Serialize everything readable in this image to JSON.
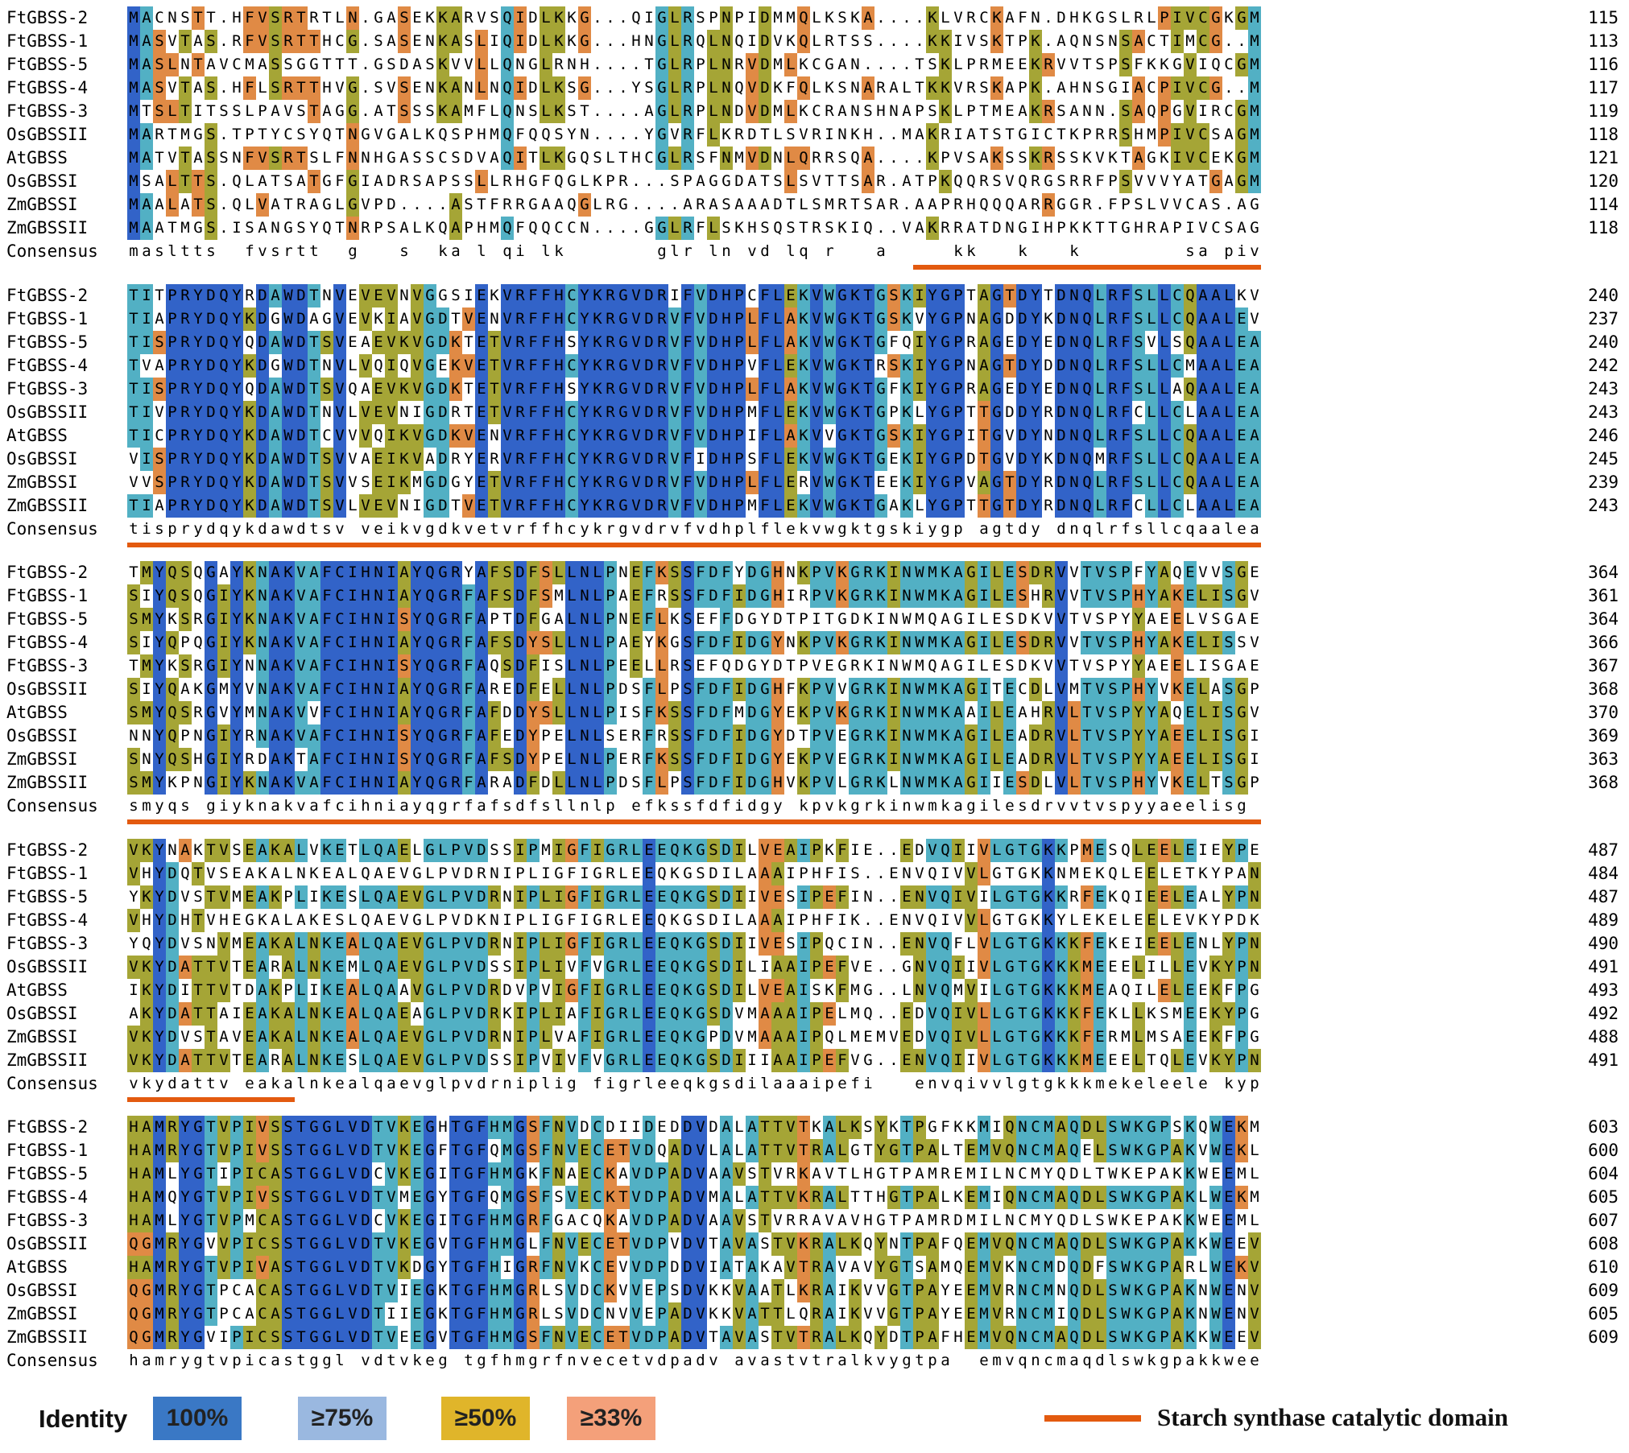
{
  "alignment": {
    "blocks": [
      {
        "rows": [
          {
            "name": "FtGBSS-2",
            "seq": "MACNSTT.HFVSRTRTLN.GASEKKARVSQIDLKKG...QIGLRSPNPIDMMQLKSKA....KLVRCKAFN.DHKGSLRLPIVCGKGMNMVFVGAEVAPWSKTGGLGDVLGGLPPALSANGHRVM",
            "end": "115"
          },
          {
            "name": "FtGBSS-1",
            "seq": "MASVTAS.RFVSRTTHCG.SASENKASLIQIDLKKG...HNGLRQLNQIDVKQLRTSS....KKIVSKTPK.AQNSNSACTIMCG..MSVVFVSTEVAPWSKTGGLGDVVGGLPPALAAMGHRVM",
            "end": "113"
          },
          {
            "name": "FtGBSS-5",
            "seq": "MASLNTAVCMASSGGTTT.GSDASKVVLLQNGLRNH....TGLRPLNRVDMLKCGAN....TSKLPRMEEKRVVTSPSFKKGVIQCGMNLVFVSAEVAPWSKTGGLGDVLAGLPPAMAANGHRVM",
            "end": "116"
          },
          {
            "name": "FtGBSS-4",
            "seq": "MASVTAS.HFLSRTTHVG.SVSENKANLNQIDLKSG...YSGLRPLNQVDKFQLKSNARALTKKVRSKAPK.AHNSGIACPIVCG..MSVVFISAEVAPWSKTGGLGDVVGGLPPALAAMGHRVM",
            "end": "117"
          },
          {
            "name": "FtGBSS-3",
            "seq": "MTSLTITSSLPAVSTAGG.ATSSSKAMFLQNSLKST....AGLRPLNDVDMLKCRANSHNAPSKLPTMEAKRSANN.SAQPGVIRCGMNLVFVGAEVAPWSKTGGLGDVLAGLPPAMAANGHRVM",
            "end": "119"
          },
          {
            "name": "OsGBSSII",
            "seq": "MARTMGS.TPTYCSYQTNGVGALKQSPHMQFQQSYN....YGVRFLKRDTLSVRINKH..MAKRIATSTGICTKPRRSHMPIVCSAGMTIIFIATECHPWCKTGGLGDVLGGLPPALAAMGHRVM",
            "end": "118"
          },
          {
            "name": "AtGBSS",
            "seq": "MATVTASSNFVSRTSLFNNHGASSCSDVAQITLKGQSLTHCGLRSFNMVDNLQRRSQA....KPVSAKSSKRSSKVKTAGKIVCEKGMSVIFIGAEVGPWSKTGGLGDVLGGLPPALAARGHRVM",
            "end": "121"
          },
          {
            "name": "OsGBSSI",
            "seq": "MSALTTS.QLATSATGFGIADRSAPSSLLRHGFQGLKPR...SPAGGDATSLSVTTSAR.ATPKQQRSVQRGSRRFPSVVVYATGAGMNVVFVGAEMAPWSKTGGLGDVLGGLPPAMAANGHRVM",
            "end": "120"
          },
          {
            "name": "ZmGBSSI",
            "seq": "MAALATS.QLVATRAGLGVPD....ASTFRRGAAQGLRG....ARASAAADTLSMRTSAR.AAPRHQQQARRGGR.FPSLVVCAS.AGMNVVFVGAEMAPWSKTGGLGDVLGGLPPAMAANGHRVM",
            "end": "114"
          },
          {
            "name": "ZmGBSSII",
            "seq": "MAATMGS.ISANGSYQTNRPSALKQAPHMQFQQCCN....GGLRFLSKHSQSTRSKIQ..VAKRRATDNGIHPKKTTGHRAPIVCSAGMTIVFVATEVHPWCKTGGLGDVLGGLPPALAAMGHRVM",
            "end": "118"
          }
        ],
        "consensus": "masltts  fvsrtt  g   s  ka l qi lk       glr ln vd lq r   a     kk   k   k        sa pivcgagmnvvfvgaevapwsktgglgdvlggl ppalaanghrvm"
      },
      {
        "rows": [
          {
            "name": "FtGBSS-2",
            "seq": "TITPRYDQYRDAWDTNVEVEVNVGGSIEKVRFFHCYKRGVDRIFVDHPCFLEKVWGKTGSKIYGPTAGTDYTDNQLRFSLLCQAALKVPMVLNMNSNKQYSGPYGEDVVFIANDWHTALLPCYLK",
            "end": "240"
          },
          {
            "name": "FtGBSS-1",
            "seq": "TIAPRYDQYKDGWDAGVEVKIAVGDTVENVRFFHCYKRGVDRVFVDHPLFLAKVWGKTGSKVYGPNAGDDYKDNQLRFSLLCQAALEVPRVLNLTS.KHHSGPYGEDVVFVANDWHTALLPCYLK",
            "end": "237"
          },
          {
            "name": "FtGBSS-5",
            "seq": "TISPRYDQYQDAWDTSVEAEVKVGDKTETVRFFHSYKRGVDRVFVDHPLFLAKVWGKTGFQIYGPRAGEDYEDNQLRFSVLSQAALEAPRILNLSN.KFFSGPYGEDVLFVANDWHSALLPCYLK",
            "end": "240"
          },
          {
            "name": "FtGBSS-4",
            "seq": "TVAPRYDQYKDGWDTNVLVQIQVGEKVETVRFFHCYKRGVDRVFVDHPVFLEKVWGKTRSKIYGPNAGTDYDDNQLRFSLLCMAALEAPRVLNLNNGKHHSGPYGEDVVFVPNDWHTALVPCYLK",
            "end": "242"
          },
          {
            "name": "FtGBSS-3",
            "seq": "TISPRYDQYQDAWDTSVQAEVKVGDKTETVRFFHSYKRGVDRVFVDHPLFLAKVWGKTGFKIYGPRAGEDYEDNQLRFSLLAQAALEAPRILNLSN.KFFSGPYGEDVVFIANDWHTALLPCYLK",
            "end": "243"
          },
          {
            "name": "OsGBSSII",
            "seq": "TIVPRYDQYKDAWDTNVLVEVNIGDRTETVRFFHCYKRGVDRVFVDHPMFLEKVWGKTGPKLYGPTTGDDYRDNQLRFCLLCLAALEAPRVLNLNNSEYFSGPYGENVVFVANDWHTGVLPCYLK",
            "end": "243"
          },
          {
            "name": "AtGBSS",
            "seq": "TICPRYDQYKDAWDTCVVVQIKVGDKVENVRFFHCYKRGVDRVFVDHPIFLAKVVGKTGSKIYGPITGVDYNDNQLRFSLLCQAALEAPQVLNLNSSKYFSGPYGEDVVFVANDWHTALLPCYLK",
            "end": "246"
          },
          {
            "name": "OsGBSSI",
            "seq": "VISPRYDQYKDAWDTSVVAEIKVADRYERVRFFHCYKRGVDRVFIDHPSFLEKVWGKTGEKIYGPDTGVDYKDNQMRFSLLCQAALEAPRILNLNNNPYFKGTYGEDVVFVCNDWHTGPLASYLK",
            "end": "245"
          },
          {
            "name": "ZmGBSSI",
            "seq": "VVSPRYDQYKDAWDTSVVSEIKMGDGYETVRFFHCYKRGVDRVFVDHPLFLERVWGKTEEKIYGPVAGTDYRDNQLRFSLLCQAALEAPRILSLNNNPYFSGPYGEDVVFVCNDWHTGPLSCYLK",
            "end": "239"
          },
          {
            "name": "ZmGBSSII",
            "seq": "TIAPRYDQYKDAWDTSVLVEVNIGDTVETVRFFHCYKRGVDRVFVDHPMFLEKVWGKTGAKLYGPTTGTDYRDNQLRFCLLCLAALEAPRVLNFNNSEYFSGPYGEDVVFVANDWHTAILPCYLK",
            "end": "243"
          }
        ],
        "consensus": "tisprydqykdawdtsv veikvgdkvetvrffhcykrgvdrvfvdhplflekvwgktgskiygp agtdy dnqlrfsllcqaaleaprvlnlnn kyfsgpygedvvfvandwhtallpcylk"
      },
      {
        "rows": [
          {
            "name": "FtGBSS-2",
            "seq": "TMYQSQGAYKNAKVAFCIHNIAYQGRYAFSDFSLLNLPNEFKSSFDFYDGHNKPVKGRKINWMKAGILESDRVVTVSPFYAQEVVSGEETGVELDNIIRKTGIT.GIVNGMDVQEWNPASDKHID",
            "end": "364"
          },
          {
            "name": "FtGBSS-1",
            "seq": "SIYQSQGIYKNAKVAFCIHNIAYQGRFAFSDFSMLNLPAEFRSSFDFIDGHIRPVKGRKINWMKAGILESHRVVTVSPHYAKELISGVAKGVELDHIIRSTGIT.GIINGMDVQEWNPATDKYID",
            "end": "361"
          },
          {
            "name": "FtGBSS-5",
            "seq": "SMYKSRGIYKNAKVAFCIHNISYQGRFAPTDFGALNLPNEFLKSEFFDGYDTPITGDKINWMQAGILESDKVVTVSPYYAEELVSGAERGVELEKIIRKTGVI.GILNGMDKEWDPSSDKFIN",
            "end": "364"
          },
          {
            "name": "FtGBSS-4",
            "seq": "SIYQPQGIYKNAKVAFCIHNIAYQGRFAFSDYSLLNLPAEYKGSFDFIDGYNKPVKGRKINWMKAGILESDRVVTVSPHYAKELISSVAKGVELDHIILRTGIT.GIVNGMDVQEWNPVTDKHID",
            "end": "366"
          },
          {
            "name": "FtGBSS-3",
            "seq": "TMYKSRGIYNNAKVAFCIHNISYQGRFAQSDFISLNLPEELLRSEFQDGYDTPVEGRKINWMQAGILESDKVVTVSPYYAEELISGAERGVELDKVIGSTGIT.GILNGMDKQEWNPLTDKHIT",
            "end": "367"
          },
          {
            "name": "OsGBSSII",
            "seq": "SIYQAKGMYVNAKVAFCIHNIAYQGRFAREDFELLNLPDSFLPSFDFIDGHFKPVVGRKINWMKAGITECDLVMTVSPHYVKELASGPDKGVELDGILRTKPLETGIVNGMDVYEWNPATDQYIS",
            "end": "368"
          },
          {
            "name": "AtGBSS",
            "seq": "SMYQSRGVYMNAKVVFCIHNIAYQGRFAFDDYSLLNLPISFKSSFDFMDGYEKPVKGRKINWMKAAILEAHRVLTVSPYYAQELISGVDRGVELHKYLRMKTVS.GIINGMDVQEWNPSTDKYID",
            "end": "370"
          },
          {
            "name": "OsGBSSI",
            "seq": "NNYQPNGIYRNAKVAFCIHNISYQGRFAFEDYPELNLSERFRSSFDFIDGYDTPVEGRKINWMKAGILEADRVLTVSPYYAEELISGIARGCELDNIMRLTGIT.GIVNGMDVSEWDPSKDKYIT",
            "end": "369"
          },
          {
            "name": "ZmGBSSI",
            "seq": "SNYQSHGIYRDAKTAFCIHNISYQGRFAFSDYPELNLPERFKSSFDFIDGYEKPVEGRKINWMKAGILEADRVLTVSPYYAEELISGIARGCELDNIMRLTGIT.GIVNGMDVSEWDPSRDKYIA",
            "end": "363"
          },
          {
            "name": "ZmGBSSII",
            "seq": "SMYKPNGIYKNAKVAFCIHNIAYQGRFARADFDLLNLPDSFLPSFDFIDGHVKPVLGRKLNWMKAGIIESDLVLTVSPHYVKELTSGPDKGVELDGVLRTKPLEIGIVNGMDVYEWDPSTDKYIS",
            "end": "368"
          }
        ],
        "consensus": "smyqs giyknakvafcihniayqgrfafsdfsllnlp efkssfdfidgy kpvkgrkinwmkagilesdrvvtvspyyaeelisg argveld iir tgit givngmdvqewnpstdkyid"
      },
      {
        "rows": [
          {
            "name": "FtGBSS-2",
            "seq": "VKYNAKTVSEAKALVKETLQAELGLPVDSSIPMIGFIGRLEEQKGSDILVEAIPKFIE..EDVQIIVLGTGKKPMESQLEELEIEYPEKARGVATFNIPLAHKINASADFMLIPSRFEPCGLIQL",
            "end": "487"
          },
          {
            "name": "FtGBSS-1",
            "seq": "VHYDQTVSEAKALNKEALQAEVGLPVDRNIPLIGFIGRLEEQKGSDILAAAIPHFIS..ENVQIVVLGTGKKNMEKQLEELETKYPANARGIAKFNVPLAHMITAGADFMLVPSRFEPCGLIQL",
            "end": "484"
          },
          {
            "name": "FtGBSS-5",
            "seq": "YKYDVSTVMEAKPLIKESLQAEVGLPVDRNIPLIGFIGRLEEQKGSDIIVESIPEFIN..ENVQIVILGTGKKRFEKQIEELEALYPNKARGVAAFNPSMAHKINAGVDFMLIPSRFEPCGLTQL",
            "end": "487"
          },
          {
            "name": "FtGBSS-4",
            "seq": "VHYDHTVHEGKALAKESLQAEVGLPVDKNIPLIGFIGRLEEQKGSDILAAAIPHFIK..ENVQIVVLGTGKKYLEKELEELEVKYPDKARGIAKFNVPLAHMITAGADFMLIPSRFEPCGLIQL",
            "end": "489"
          },
          {
            "name": "FtGBSS-3",
            "seq": "YQYDVSNVMEAKALNKEALQAEVGLPVDRNIPLIGFIGRLEEQKGSDIIVESIPQCIN..ENVQFLVLGTGKKKFEKEIEELENLYPNKIRGVTKFNPALAHKIIAGADFMLIPSRFEPCGLIQL",
            "end": "490"
          },
          {
            "name": "OsGBSSII",
            "seq": "VKYDATTVTEARALNKEMLQAEVGLPVDSSIPLIVFVGRLEEQKGSDILIAAIPEFVE..GNVQIIVLGTGKKKMEEELILLEVKYPNNARGIAKFNVPLAHMMFAGADFIIVPSRFEPCGLIQL",
            "end": "491"
          },
          {
            "name": "AtGBSS",
            "seq": "IKYDITTVTDAKPLIKEALQAAVGLPVDRDVPVIGFIGRLEEQKGSDILVEAISKFMG..LNVQMVILGTGKKKMEAQILELEEKFPGKAVGVAKFNVPLAHMITAGADFIIVPSRFEPCGLIQL",
            "end": "493"
          },
          {
            "name": "OsGBSSI",
            "seq": "AKYDATTAIEAKALNKEALQAEAGLPVDRKIPLIAFIGRLEEQKGSDVMAAAIPELMQ..EDVQIVLLGTGKKKFEKLLKSMEEKYPGKVRAVVKFNAPLAHLIMAGADVLAVPSRFEPCGLIQL",
            "end": "492"
          },
          {
            "name": "ZmGBSSI",
            "seq": "VKYDVSTAVEAKALNKEALQAEVGLPVDRNIPLVAFIGRLEEQKGPDVMAAAIPQLMEMVEDVQIVLLGTGKKKFERMLMSAEEKFPGKVRAVVKFNAALAHHIMAGADVLAVTSRFEPCGLIQL",
            "end": "488"
          },
          {
            "name": "ZmGBSSII",
            "seq": "VKYDATTVTEARALNKESLQAEVGLPVDSSIPVIVFVGRLEEQKGSDIIIAAIPEFVG..ENVQIIVLGTGKKKMEEELTQLEVKYPNNARGIAKFNVPLAHMMFAGADFIIVPSRFEPCGLIQL",
            "end": "491"
          }
        ],
        "consensus": "vkydattv eakalnkealqaevglpvdrniplig figrleeqkgsdilaaaipefi   envqivvlgtgkkkmekeleele kypnkargvakfnvplahmi agadfmlvpsrfepcgliql"
      },
      {
        "rows": [
          {
            "name": "FtGBSS-2",
            "seq": "HAMRYGTVPIVSSTGGLVDTVKEGHTGFHMGSFNVDCDIIDEDDVDALATTVTKALKSYKTPGFKKMIQNCMAQDLSWKGPSKQWEKMLITMEVIG.EDGIE.GEEAAFVGKESVVTS",
            "end": "603"
          },
          {
            "name": "FtGBSS-1",
            "seq": "HAMRYGTVPIVSSTGGLVDTVKEGFTGFQMGSFNVECETVDQADVLALATTVTRALGTYGTPALTEMVQNCMAQELSWKGPAKVWEKLLLSMEVVG.EAGTE.ADEIAPLAKENVATP",
            "end": "600"
          },
          {
            "name": "FtGBSS-5",
            "seq": "HAMLYGTIPICASTGGLVDCVKEGITGFHMGKFNAECKAVDPADVAAVSTVRKAVTLHGTPAMREMILNCMYQDLTWKEPAKKWEEMLLGLQVVGSGPGIE.GEEIAPLAMENVAAP",
            "end": "604"
          },
          {
            "name": "FtGBSS-4",
            "seq": "HAMQYGTVPIVSSTGGLVDTVMEGYTGFQMGSFSVECKTVDPADVMALATTVKRALTTHGTPALKEMIQNCMAQDLSWKGPAKLWEKMLLSMEVIG.ELGTE.GEEVTPLSKENVPTP",
            "end": "605"
          },
          {
            "name": "FtGBSS-3",
            "seq": "HAMLYGTVPMCASTGGLVDCVKEGITGFHMGRFGACQKAVDPADVAAVSTVRRAVAVHGTPAMRDMILNCMYQDLSWKEPAKKWEEMLLGMQVAGSGPGFK.GEEIAPLAKENIPNP",
            "end": "607"
          },
          {
            "name": "OsGBSSII",
            "seq": "QGMRYGVVPICSSTGGLVDTVKEGVTGFHMGLFNVECETVDPVDVTAVASTVKRALKQYNTPAFQEMVQNCMAQDLSWKGPAKKWEEVLLGLGVEGSQPGIE.GEEIAPLAKENVATP",
            "end": "608"
          },
          {
            "name": "AtGBSS",
            "seq": "HAMRYGTVPIVASTGGLVDTVKDGYTGFHIGRFNVKCEVVDPDDVIATAKAVTRAVAVYGTSAMQEMVKNCMDQDFSWKGPARLWEKVLLSLNVAGSEAGTE.GEEIAPLAKENVATP",
            "end": "610"
          },
          {
            "name": "OsGBSSI",
            "seq": "QGMRYGTPCACASTGGLVDTVIEGKTGFHMGRLSVDCKVVEPSDVKKVAATLKRAIKVVGTPAYEEMVRNCMNQDLSWKGPAKNWENVLLGLGVAGSAPGIE.GDEIAPLAKENVAAP",
            "end": "609"
          },
          {
            "name": "ZmGBSSI",
            "seq": "QGMRYGTPCACASTGGLVDTIIEGKTGFHMGRLSVDCNVVEPADVKKVATTLQRAIKVVGTPAYEEMVRNCMIQDLSWKGPAKNWENVLLSLGVAGGEPGVE.GEEIAPLAKENVAAP",
            "end": "605"
          },
          {
            "name": "ZmGBSSII",
            "seq": "QGMRYGVIPICSSTGGLVDTVEEGVTGFHMGSFNVECETVDPADVTAVASTVTRALKQYDTPAFHEMVQNCMAQDLSWKGPAKKWEEVLLGLGVEGSRAGIDDAEEIAPLAKENVATP",
            "end": "609"
          }
        ],
        "consensus": "hamrygtvpicastggl vdtvkeg tgfhmgrfnvecetvdpadv avastvtralkvygtpa  emvqncmaqdlswkgpakkweevllglgvagsepgie geeiaplakenvatp"
      }
    ],
    "consensus_label": "Consensus"
  },
  "colors": {
    "identity_100": "#3263c8",
    "identity_75": "#52b0c4",
    "identity_50": "#a5a536",
    "identity_33": "#e08a45",
    "domain_line": "#e35a0f"
  },
  "domain_bars": [
    {
      "block": 0,
      "start_col": 61,
      "end_col": 87
    },
    {
      "block": 1,
      "start_col": 0,
      "end_col": 87
    },
    {
      "block": 2,
      "start_col": 0,
      "end_col": 87
    },
    {
      "block": 3,
      "start_col": 0,
      "end_col": 12
    }
  ],
  "legend": {
    "title": "Identity",
    "items": [
      {
        "label": "100%",
        "color": "#3a78c5"
      },
      {
        "label": "≥75%",
        "color": "#9ab8e0"
      },
      {
        "label": "≥50%",
        "color": "#e0b52a"
      },
      {
        "label": "≥33%",
        "color": "#f4a07a"
      }
    ],
    "domain_label": "Starch synthase catalytic domain"
  }
}
